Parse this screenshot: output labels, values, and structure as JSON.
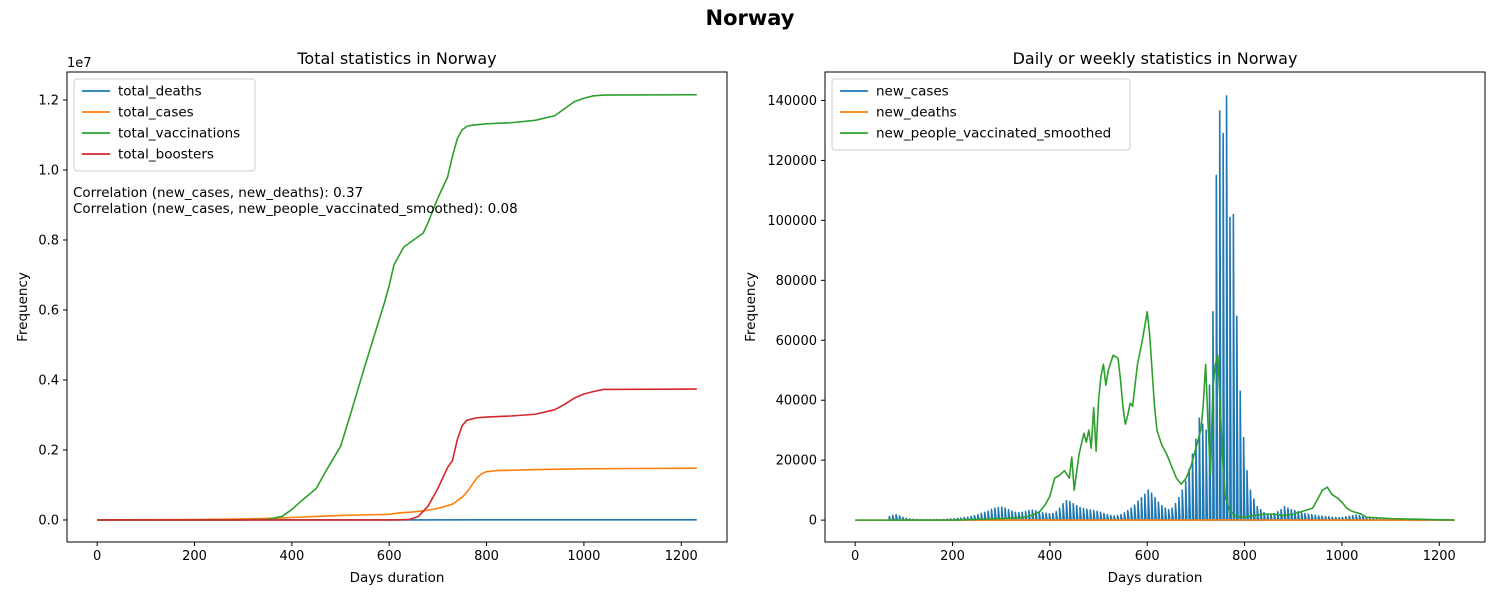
{
  "figure_title": "Norway",
  "colors": {
    "blue": "#1f77b4",
    "orange": "#ff7f0e",
    "green": "#2ca02c",
    "red": "#d62728"
  },
  "chart_data": [
    {
      "type": "line",
      "title": "Total statistics in Norway",
      "xlabel": "Days duration",
      "ylabel": "Frequency",
      "y_offset_label": "1e7",
      "xlim": [
        -62,
        1294
      ],
      "ylim": [
        -630000,
        12800000
      ],
      "xticks": [
        0,
        200,
        400,
        600,
        800,
        1000,
        1200
      ],
      "xtick_labels": [
        "0",
        "200",
        "400",
        "600",
        "800",
        "1000",
        "1200"
      ],
      "yticks": [
        0,
        2000000,
        4000000,
        6000000,
        8000000,
        10000000,
        12000000
      ],
      "ytick_labels": [
        "0.0",
        "0.2",
        "0.4",
        "0.6",
        "0.8",
        "1.0",
        "1.2"
      ],
      "legend_position": "upper-left",
      "grid": false,
      "annotations": [
        "Correlation (new_cases, new_deaths): 0.37",
        "Correlation (new_cases, new_people_vaccinated_smoothed): 0.08"
      ],
      "series": [
        {
          "name": "total_deaths",
          "color": "#1f77b4",
          "x": [
            0,
            300,
            600,
            800,
            1000,
            1232
          ],
          "y": [
            0,
            500,
            1000,
            3000,
            4500,
            5000
          ]
        },
        {
          "name": "total_cases",
          "color": "#ff7f0e",
          "x": [
            0,
            200,
            300,
            370,
            400,
            450,
            500,
            600,
            620,
            650,
            680,
            700,
            730,
            750,
            760,
            770,
            780,
            790,
            800,
            820,
            850,
            900,
            1000,
            1100,
            1232
          ],
          "y": [
            0,
            10000,
            30000,
            50000,
            70000,
            100000,
            130000,
            160000,
            200000,
            230000,
            280000,
            330000,
            450000,
            650000,
            800000,
            1000000,
            1200000,
            1320000,
            1380000,
            1410000,
            1420000,
            1440000,
            1460000,
            1470000,
            1480000
          ]
        },
        {
          "name": "total_vaccinations",
          "color": "#2ca02c",
          "x": [
            0,
            300,
            350,
            380,
            400,
            420,
            450,
            470,
            500,
            520,
            550,
            570,
            590,
            600,
            610,
            630,
            650,
            670,
            680,
            700,
            720,
            730,
            740,
            750,
            760,
            770,
            800,
            850,
            900,
            940,
            960,
            980,
            1000,
            1020,
            1040,
            1232
          ],
          "y": [
            0,
            0,
            20000,
            100000,
            300000,
            550000,
            900000,
            1400000,
            2100000,
            3000000,
            4400000,
            5300000,
            6200000,
            6700000,
            7300000,
            7800000,
            8000000,
            8200000,
            8500000,
            9200000,
            9800000,
            10400000,
            10900000,
            11150000,
            11250000,
            11280000,
            11320000,
            11350000,
            11420000,
            11550000,
            11750000,
            11950000,
            12050000,
            12120000,
            12140000,
            12150000
          ]
        },
        {
          "name": "total_boosters",
          "color": "#d62728",
          "x": [
            0,
            600,
            640,
            660,
            680,
            700,
            720,
            730,
            740,
            750,
            760,
            780,
            800,
            850,
            900,
            940,
            960,
            980,
            1000,
            1020,
            1040,
            1232
          ],
          "y": [
            0,
            0,
            10000,
            100000,
            400000,
            900000,
            1500000,
            1700000,
            2300000,
            2700000,
            2850000,
            2920000,
            2940000,
            2970000,
            3020000,
            3150000,
            3300000,
            3480000,
            3600000,
            3670000,
            3730000,
            3740000
          ]
        }
      ]
    },
    {
      "type": "line",
      "title": "Daily or weekly statistics in Norway",
      "xlabel": "Days duration",
      "ylabel": "Frequency",
      "xlim": [
        -62,
        1294
      ],
      "ylim": [
        -7300,
        149500
      ],
      "xticks": [
        0,
        200,
        400,
        600,
        800,
        1000,
        1200
      ],
      "xtick_labels": [
        "0",
        "200",
        "400",
        "600",
        "800",
        "1000",
        "1200"
      ],
      "yticks": [
        0,
        20000,
        40000,
        60000,
        80000,
        100000,
        120000,
        140000
      ],
      "ytick_labels": [
        "0",
        "20000",
        "40000",
        "60000",
        "80000",
        "100000",
        "120000",
        "140000"
      ],
      "legend_position": "upper-left",
      "grid": false,
      "series": [
        {
          "name": "new_cases",
          "color": "#1f77b4",
          "style": "weekly-spikes",
          "x": [
            70,
            77,
            84,
            91,
            98,
            105,
            112,
            119,
            126,
            133,
            140,
            147,
            154,
            161,
            168,
            175,
            182,
            189,
            196,
            203,
            210,
            217,
            224,
            231,
            238,
            245,
            252,
            259,
            266,
            273,
            280,
            287,
            294,
            301,
            308,
            315,
            322,
            329,
            336,
            343,
            350,
            357,
            364,
            371,
            378,
            385,
            392,
            399,
            406,
            413,
            420,
            427,
            434,
            441,
            448,
            455,
            462,
            469,
            476,
            483,
            490,
            497,
            504,
            511,
            518,
            525,
            532,
            539,
            546,
            553,
            560,
            567,
            574,
            581,
            588,
            595,
            602,
            609,
            616,
            623,
            630,
            637,
            644,
            651,
            658,
            665,
            672,
            679,
            686,
            693,
            700,
            707,
            714,
            721,
            728,
            735,
            742,
            749,
            756,
            763,
            770,
            777,
            784,
            791,
            798,
            805,
            812,
            819,
            826,
            833,
            840,
            847,
            854,
            861,
            868,
            875,
            882,
            889,
            896,
            903,
            910,
            917,
            924,
            931,
            938,
            945,
            952,
            959,
            966,
            973,
            980,
            987,
            994,
            1001,
            1008,
            1015,
            1022,
            1029,
            1036,
            1043,
            1050,
            1057,
            1064,
            1071,
            1078,
            1085,
            1092,
            1099,
            1106,
            1113,
            1120,
            1127,
            1134,
            1141,
            1148,
            1155,
            1162,
            1169,
            1176,
            1183,
            1190,
            1197,
            1204,
            1211,
            1218,
            1225
          ],
          "y": [
            1200,
            1600,
            1800,
            1400,
            900,
            600,
            400,
            300,
            250,
            200,
            150,
            150,
            150,
            150,
            200,
            200,
            250,
            300,
            400,
            500,
            600,
            700,
            900,
            1000,
            1200,
            1500,
            1800,
            2200,
            2600,
            3000,
            3600,
            4000,
            4200,
            4300,
            4000,
            3500,
            3000,
            2600,
            2500,
            2600,
            2900,
            3200,
            3300,
            3100,
            2800,
            2500,
            2300,
            2100,
            2200,
            2800,
            4000,
            5500,
            6500,
            6200,
            5500,
            4800,
            4200,
            3800,
            3600,
            3400,
            3200,
            2900,
            2600,
            2200,
            1800,
            1500,
            1400,
            1500,
            1800,
            2400,
            3200,
            4000,
            5000,
            6300,
            7500,
            8600,
            10000,
            9000,
            7500,
            6000,
            4800,
            4000,
            3500,
            4000,
            5500,
            7500,
            10000,
            13000,
            17000,
            22000,
            27000,
            34000,
            32000,
            30000,
            45000,
            69500,
            115000,
            136500,
            129000,
            141500,
            101000,
            102000,
            68000,
            43000,
            27500,
            16500,
            10000,
            7000,
            4500,
            3500,
            2500,
            2000,
            2000,
            2200,
            2800,
            3500,
            4500,
            4000,
            3500,
            3200,
            2800,
            2500,
            2200,
            2000,
            1800,
            1600,
            1400,
            1300,
            1200,
            1100,
            1000,
            900,
            800,
            900,
            1100,
            1300,
            1500,
            1600,
            1500,
            1200,
            900,
            700,
            500,
            400,
            350,
            300,
            300,
            350,
            400,
            450,
            400,
            350,
            300,
            300,
            350,
            400,
            350,
            300,
            300,
            250,
            250,
            250,
            200,
            200,
            200,
            200
          ]
        },
        {
          "name": "new_deaths",
          "color": "#ff7f0e",
          "x": [
            0,
            300,
            500,
            700,
            750,
            800,
            900,
            1000,
            1232
          ],
          "y": [
            0,
            10,
            20,
            30,
            50,
            40,
            20,
            10,
            5
          ]
        },
        {
          "name": "new_people_vaccinated_smoothed",
          "color": "#2ca02c",
          "x": [
            0,
            200,
            300,
            350,
            370,
            380,
            390,
            400,
            410,
            420,
            430,
            440,
            445,
            450,
            460,
            470,
            475,
            480,
            485,
            490,
            495,
            500,
            505,
            510,
            515,
            520,
            530,
            540,
            545,
            550,
            555,
            560,
            565,
            570,
            575,
            580,
            590,
            600,
            605,
            610,
            615,
            620,
            630,
            640,
            650,
            660,
            670,
            680,
            690,
            700,
            710,
            715,
            720,
            725,
            730,
            735,
            740,
            745,
            750,
            755,
            760,
            770,
            780,
            790,
            800,
            820,
            840,
            860,
            880,
            900,
            920,
            940,
            950,
            960,
            970,
            980,
            990,
            1000,
            1010,
            1020,
            1030,
            1040,
            1050,
            1100,
            1232
          ],
          "y": [
            0,
            0,
            500,
            1000,
            2000,
            3000,
            5000,
            8000,
            14000,
            15000,
            16500,
            14000,
            21000,
            10000,
            22000,
            29000,
            26000,
            30000,
            24000,
            37500,
            23000,
            40000,
            48000,
            52000,
            45000,
            50000,
            55000,
            54000,
            47000,
            38000,
            32000,
            35000,
            39000,
            38000,
            45000,
            52000,
            60000,
            69500,
            62000,
            50000,
            38000,
            30000,
            25000,
            22000,
            18000,
            14000,
            12000,
            14000,
            18000,
            24000,
            30000,
            38000,
            52000,
            32000,
            15000,
            44000,
            52000,
            55000,
            38000,
            20000,
            8000,
            3000,
            1500,
            1000,
            1000,
            1500,
            2000,
            2000,
            1500,
            2000,
            3000,
            4000,
            7000,
            10000,
            11000,
            8500,
            7500,
            6000,
            4000,
            3000,
            2500,
            2000,
            1000,
            500,
            0
          ]
        }
      ]
    }
  ]
}
